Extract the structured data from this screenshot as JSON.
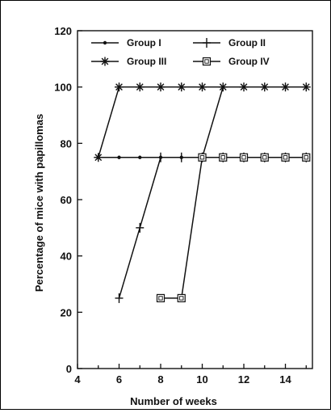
{
  "chart_data": {
    "type": "line",
    "title": "",
    "xlabel": "Number of weeks",
    "ylabel": "Percentage of mice with papillomas",
    "xlim": [
      4,
      15.3
    ],
    "ylim": [
      0,
      120
    ],
    "xticks": [
      4,
      6,
      8,
      10,
      12,
      14
    ],
    "yticks": [
      0,
      20,
      40,
      60,
      80,
      100,
      120
    ],
    "grid": false,
    "legend": {
      "placement": "top"
    },
    "series": [
      {
        "name": "Group I",
        "marker": "dot",
        "x": [
          5,
          6,
          7,
          8,
          9,
          10,
          11,
          12,
          13,
          14,
          15
        ],
        "y": [
          75,
          75,
          75,
          75,
          75,
          75,
          75,
          75,
          75,
          75,
          75
        ]
      },
      {
        "name": "Group II",
        "marker": "plus",
        "x": [
          6,
          7,
          8,
          9,
          10,
          11,
          12,
          13,
          14,
          15
        ],
        "y": [
          25,
          50,
          75,
          75,
          75,
          75,
          75,
          75,
          75,
          75
        ]
      },
      {
        "name": "Group III",
        "marker": "asterisk",
        "x": [
          5,
          6,
          7,
          8,
          9,
          10,
          11,
          12,
          13,
          14,
          15
        ],
        "y": [
          75,
          100,
          100,
          100,
          100,
          100,
          100,
          100,
          100,
          100,
          100
        ]
      },
      {
        "name": "Group IV",
        "marker": "square",
        "x": [
          8,
          9,
          10,
          11,
          12,
          13,
          14,
          15
        ],
        "y": [
          25,
          25,
          75,
          75,
          75,
          75,
          75,
          75
        ]
      },
      {
        "name": "",
        "marker": "none",
        "x": [
          10,
          11
        ],
        "y": [
          75,
          100
        ]
      }
    ]
  }
}
